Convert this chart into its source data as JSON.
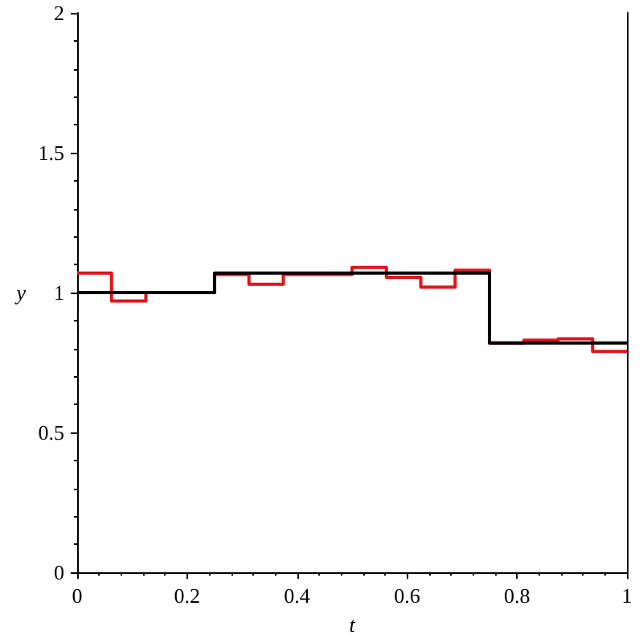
{
  "chart_data": {
    "type": "step",
    "xlabel": "t",
    "ylabel": "y",
    "xlim": [
      0,
      1
    ],
    "ylim": [
      0,
      2
    ],
    "xticks": [
      0,
      0.2,
      0.4,
      0.6,
      0.8,
      1
    ],
    "yticks": [
      0,
      0.5,
      1,
      1.5,
      2
    ],
    "grid": false,
    "marker": "none",
    "line_style": "solid",
    "series": [
      {
        "color": "#e3141c",
        "x": [
          0,
          0.0625,
          0.125,
          0.1875,
          0.25,
          0.3125,
          0.375,
          0.4375,
          0.5,
          0.5625,
          0.625,
          0.6875,
          0.75,
          0.8125,
          0.875,
          0.9375,
          1
        ],
        "values": [
          1.07,
          0.97,
          1,
          1,
          1.065,
          1.03,
          1.065,
          1.065,
          1.09,
          1.055,
          1.02,
          1.08,
          0.82,
          0.83,
          0.835,
          0.79,
          0.79
        ]
      },
      {
        "color": "#000000",
        "x": [
          0,
          0.25,
          0.75,
          1
        ],
        "values": [
          1,
          1.07,
          0.82,
          0.82
        ]
      }
    ]
  }
}
